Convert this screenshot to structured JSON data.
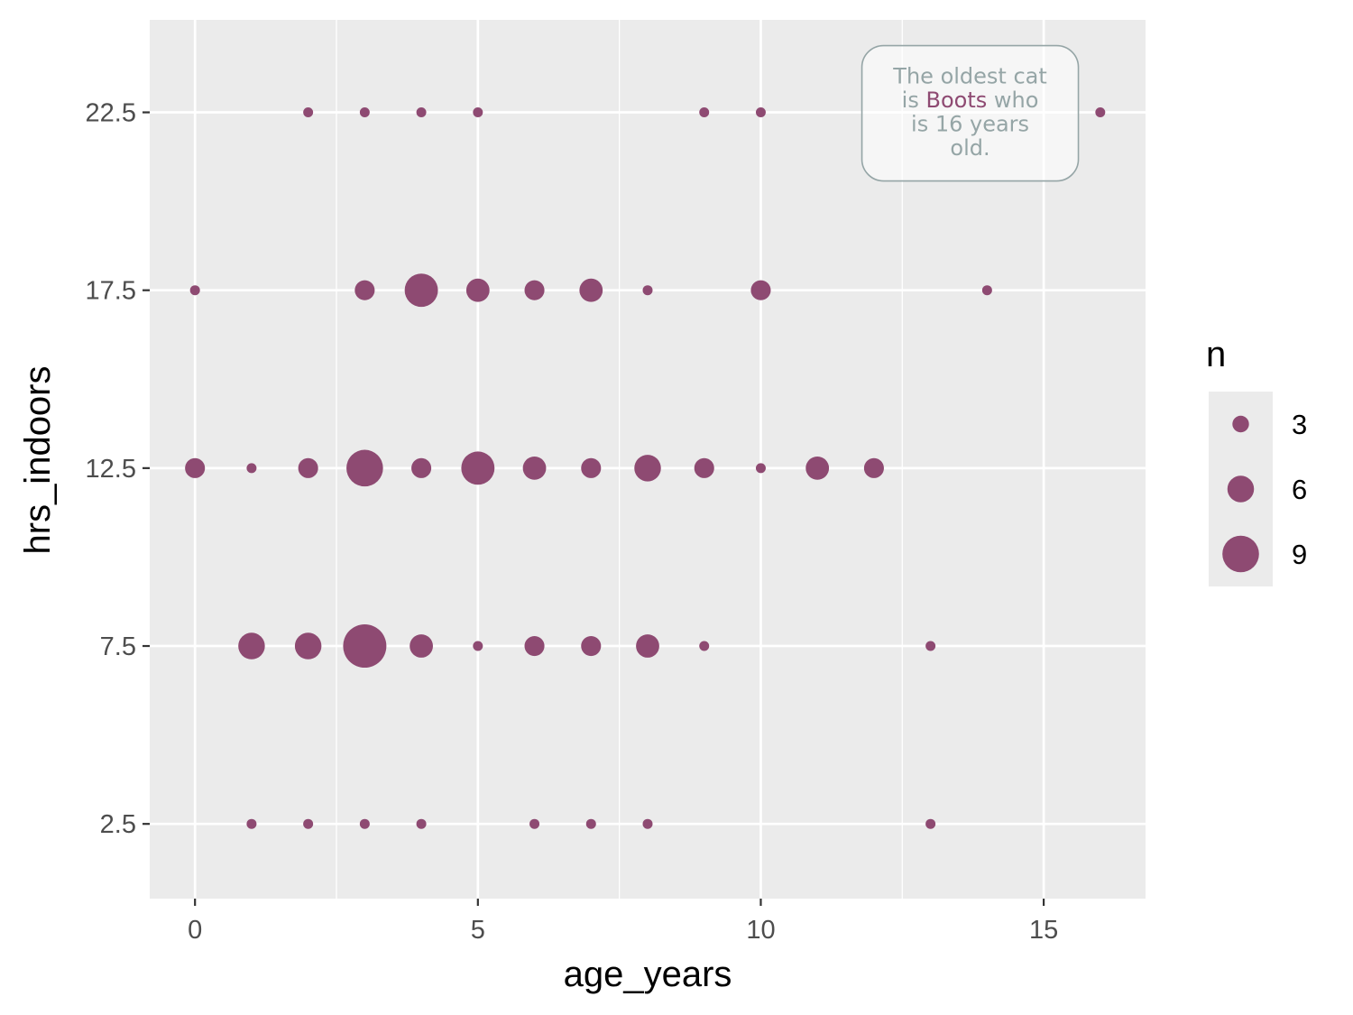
{
  "chart_data": {
    "type": "scatter",
    "title": "",
    "xlabel": "age_years",
    "ylabel": "hrs_indoors",
    "xlim": [
      -0.8,
      16.8
    ],
    "ylim": [
      0.4,
      25.1
    ],
    "x_ticks": [
      0,
      5,
      10,
      15
    ],
    "x_tick_labels": [
      "0",
      "5",
      "10",
      "15"
    ],
    "y_ticks": [
      2.5,
      7.5,
      12.5,
      17.5,
      22.5
    ],
    "y_tick_labels": [
      "2.5",
      "7.5",
      "12.5",
      "17.5",
      "22.5"
    ],
    "grid": true,
    "point_color": "#8e4a72",
    "panel_color": "#ebebeb",
    "points": [
      {
        "x": 2,
        "y": 22.5,
        "n": 1
      },
      {
        "x": 3,
        "y": 22.5,
        "n": 1
      },
      {
        "x": 4,
        "y": 22.5,
        "n": 1
      },
      {
        "x": 5,
        "y": 22.5,
        "n": 1
      },
      {
        "x": 9,
        "y": 22.5,
        "n": 1
      },
      {
        "x": 10,
        "y": 22.5,
        "n": 1
      },
      {
        "x": 16,
        "y": 22.5,
        "n": 1
      },
      {
        "x": 0,
        "y": 17.5,
        "n": 1
      },
      {
        "x": 3,
        "y": 17.5,
        "n": 4
      },
      {
        "x": 4,
        "y": 17.5,
        "n": 8
      },
      {
        "x": 5,
        "y": 17.5,
        "n": 5
      },
      {
        "x": 6,
        "y": 17.5,
        "n": 4
      },
      {
        "x": 7,
        "y": 17.5,
        "n": 5
      },
      {
        "x": 8,
        "y": 17.5,
        "n": 1
      },
      {
        "x": 10,
        "y": 17.5,
        "n": 4
      },
      {
        "x": 14,
        "y": 17.5,
        "n": 1
      },
      {
        "x": 0,
        "y": 12.5,
        "n": 4
      },
      {
        "x": 1,
        "y": 12.5,
        "n": 1
      },
      {
        "x": 2,
        "y": 12.5,
        "n": 4
      },
      {
        "x": 3,
        "y": 12.5,
        "n": 9
      },
      {
        "x": 4,
        "y": 12.5,
        "n": 4
      },
      {
        "x": 5,
        "y": 12.5,
        "n": 8
      },
      {
        "x": 6,
        "y": 12.5,
        "n": 5
      },
      {
        "x": 7,
        "y": 12.5,
        "n": 4
      },
      {
        "x": 8,
        "y": 12.5,
        "n": 6
      },
      {
        "x": 9,
        "y": 12.5,
        "n": 4
      },
      {
        "x": 10,
        "y": 12.5,
        "n": 1
      },
      {
        "x": 11,
        "y": 12.5,
        "n": 5
      },
      {
        "x": 12,
        "y": 12.5,
        "n": 4
      },
      {
        "x": 1,
        "y": 7.5,
        "n": 6
      },
      {
        "x": 2,
        "y": 7.5,
        "n": 6
      },
      {
        "x": 3,
        "y": 7.5,
        "n": 11
      },
      {
        "x": 4,
        "y": 7.5,
        "n": 5
      },
      {
        "x": 5,
        "y": 7.5,
        "n": 1
      },
      {
        "x": 6,
        "y": 7.5,
        "n": 4
      },
      {
        "x": 7,
        "y": 7.5,
        "n": 4
      },
      {
        "x": 8,
        "y": 7.5,
        "n": 5
      },
      {
        "x": 9,
        "y": 7.5,
        "n": 1
      },
      {
        "x": 13,
        "y": 7.5,
        "n": 1
      },
      {
        "x": 1,
        "y": 2.5,
        "n": 1
      },
      {
        "x": 2,
        "y": 2.5,
        "n": 1
      },
      {
        "x": 3,
        "y": 2.5,
        "n": 1
      },
      {
        "x": 4,
        "y": 2.5,
        "n": 1
      },
      {
        "x": 6,
        "y": 2.5,
        "n": 1
      },
      {
        "x": 7,
        "y": 2.5,
        "n": 1
      },
      {
        "x": 8,
        "y": 2.5,
        "n": 1
      },
      {
        "x": 13,
        "y": 2.5,
        "n": 1
      }
    ],
    "size_range": [
      1,
      11
    ],
    "legend": {
      "title": "n",
      "position": "right",
      "entries": [
        {
          "label": "3",
          "n": 3
        },
        {
          "label": "6",
          "n": 6
        },
        {
          "label": "9",
          "n": 9
        }
      ]
    },
    "annotation": {
      "lines": [
        [
          {
            "text": "The oldest cat",
            "highlight": false
          }
        ],
        [
          {
            "text": "is ",
            "highlight": false
          },
          {
            "text": "Boots",
            "highlight": true
          },
          {
            "text": " who",
            "highlight": false
          }
        ],
        [
          {
            "text": "is 16 years",
            "highlight": false
          }
        ],
        [
          {
            "text": "old.",
            "highlight": false
          }
        ]
      ],
      "text_color": "#95a5a6",
      "highlight_color": "#8e4a72",
      "anchor_x": 13.7,
      "anchor_y": 22.5
    }
  }
}
